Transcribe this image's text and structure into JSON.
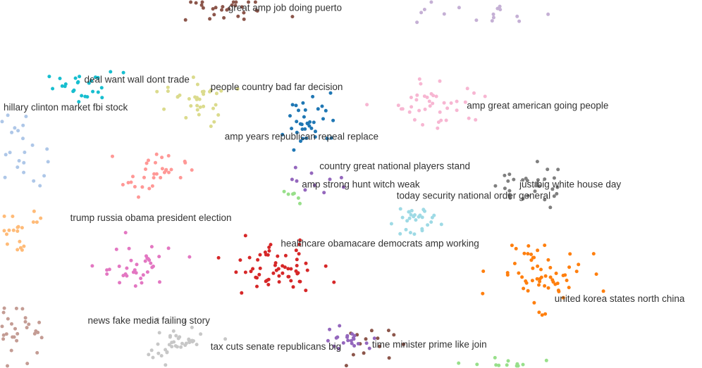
{
  "chart_data": {
    "type": "scatter",
    "title": "",
    "xlabel": "",
    "ylabel": "",
    "grid": false,
    "legend": "none",
    "xlim": [
      0,
      100
    ],
    "ylim": [
      0,
      100
    ],
    "clusters": [
      {
        "name": "great amp job doing puerto",
        "color": "#8c564b",
        "center": [
          32,
          97.5
        ],
        "spread": [
          8,
          3.5
        ],
        "count": 28,
        "label": [
          32.5,
          97
        ]
      },
      {
        "name": "deal want wall dont trade",
        "color": "#17becf",
        "center": [
          12,
          76
        ],
        "spread": [
          5,
          4
        ],
        "count": 26,
        "label": [
          12,
          77.5
        ]
      },
      {
        "name": "hillary clinton market fbi stock",
        "color": "#aec7e8",
        "center": [
          3,
          60
        ],
        "spread": [
          3,
          9
        ],
        "count": 22,
        "label": [
          0.5,
          70
        ]
      },
      {
        "name": "people country bad far decision",
        "color": "#dbdb8d",
        "center": [
          28,
          72
        ],
        "spread": [
          4,
          6
        ],
        "count": 34,
        "label": [
          30,
          75.5
        ]
      },
      {
        "name": "amp great american going people",
        "color": "#f7b6d2",
        "center": [
          63,
          72
        ],
        "spread": [
          6,
          6
        ],
        "count": 40,
        "label": [
          66.5,
          70.5
        ]
      },
      {
        "name": "amp years republican repeal replace",
        "color": "#1f77b4",
        "center": [
          44,
          67
        ],
        "spread": [
          4,
          7
        ],
        "count": 36,
        "label": [
          32,
          62
        ]
      },
      {
        "name": "country great national players stand",
        "color": "#9467bd",
        "center": [
          46,
          52
        ],
        "spread": [
          5,
          4
        ],
        "count": 10,
        "label": [
          45.5,
          54
        ]
      },
      {
        "name": "amp strong hunt witch weak",
        "color": "#98df8a",
        "center": [
          42,
          47
        ],
        "spread": [
          3,
          3
        ],
        "count": 6,
        "label": [
          43,
          49
        ]
      },
      {
        "name": "just big white house day",
        "color": "#7f7f7f",
        "center": [
          75,
          50
        ],
        "spread": [
          4,
          6
        ],
        "count": 30,
        "label": [
          74,
          49
        ]
      },
      {
        "name": "today security national order general",
        "color": "#9edae5",
        "center": [
          59,
          40
        ],
        "spread": [
          3,
          4
        ],
        "count": 28,
        "label": [
          56.5,
          46
        ]
      },
      {
        "name": "trump russia obama president election",
        "color": "#ff9896",
        "center": [
          22,
          53
        ],
        "spread": [
          4,
          5
        ],
        "count": 32,
        "label": [
          10,
          40
        ]
      },
      {
        "name": "healthcare obamacare democrats amp working",
        "color": "#d62728",
        "center": [
          39,
          27
        ],
        "spread": [
          6,
          6
        ],
        "count": 60,
        "label": [
          40,
          33
        ]
      },
      {
        "name": "united korea states north china",
        "color": "#ff7f0e",
        "center": [
          77,
          26
        ],
        "spread": [
          6,
          8
        ],
        "count": 60,
        "label": [
          79,
          18
        ]
      },
      {
        "name": "news fake media failing story",
        "color": "#e377c2",
        "center": [
          19,
          27
        ],
        "spread": [
          5,
          6
        ],
        "count": 36,
        "label": [
          12.5,
          12
        ]
      },
      {
        "name": "tax cuts senate republicans big",
        "color": "#c7c7c7",
        "center": [
          25,
          7
        ],
        "spread": [
          5,
          5
        ],
        "count": 40,
        "label": [
          30,
          5
        ]
      },
      {
        "name": "time minister prime like join",
        "color": "#8c564b",
        "center": [
          52,
          6
        ],
        "spread": [
          4,
          4
        ],
        "count": 14,
        "label": [
          53,
          5.5
        ]
      },
      {
        "name": "",
        "color": "#c5b0d5",
        "center": [
          68,
          96
        ],
        "spread": [
          7,
          3
        ],
        "count": 16,
        "label": null
      },
      {
        "name": "",
        "color": "#ffbb78",
        "center": [
          3,
          38
        ],
        "spread": [
          3,
          8
        ],
        "count": 20,
        "label": null
      },
      {
        "name": "",
        "color": "#c49c94",
        "center": [
          3,
          10
        ],
        "spread": [
          3,
          6
        ],
        "count": 28,
        "label": null
      },
      {
        "name": "",
        "color": "#9467bd",
        "center": [
          50,
          8
        ],
        "spread": [
          4,
          3
        ],
        "count": 22,
        "label": null
      },
      {
        "name": "",
        "color": "#98df8a",
        "center": [
          73,
          1
        ],
        "spread": [
          6,
          1.5
        ],
        "count": 12,
        "label": null
      }
    ]
  }
}
